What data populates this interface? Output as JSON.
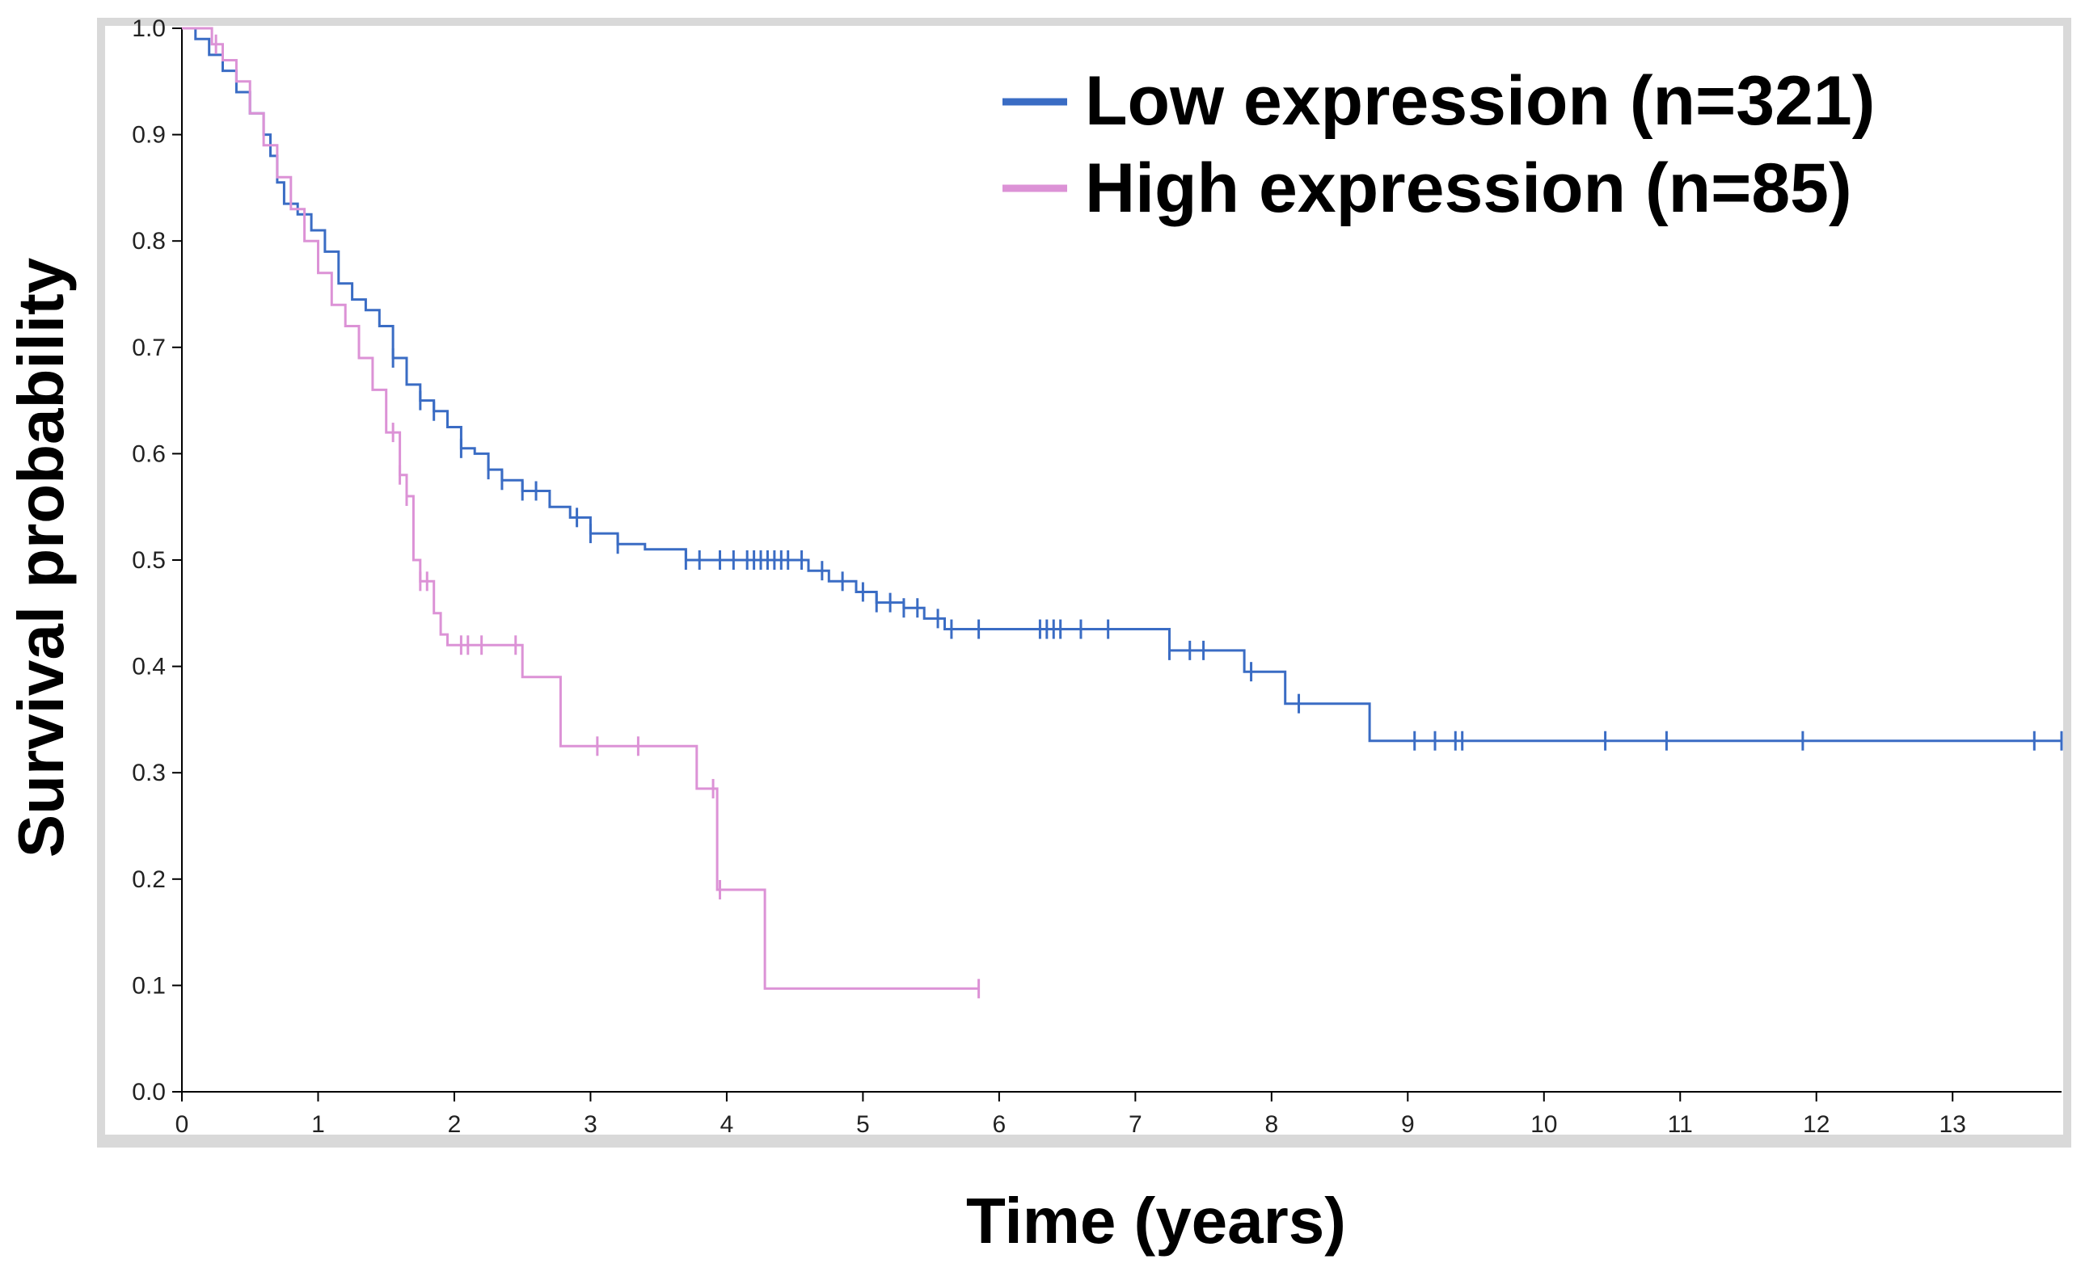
{
  "chart_data": {
    "type": "line",
    "xlabel": "Time (years)",
    "ylabel": "Survival probability",
    "xlim": [
      0,
      13.8
    ],
    "ylim": [
      0,
      1
    ],
    "x_ticks": [
      0,
      1,
      2,
      3,
      4,
      5,
      6,
      7,
      8,
      9,
      10,
      11,
      12,
      13
    ],
    "y_ticks": [
      "0.0",
      "0.1",
      "0.2",
      "0.3",
      "0.4",
      "0.5",
      "0.6",
      "0.7",
      "0.8",
      "0.9",
      "1.0"
    ],
    "grid": false,
    "legend_position": "top-right",
    "series": [
      {
        "name": "Low expression (n=321)",
        "color": "#3a6cc4",
        "points": [
          [
            0,
            1.0
          ],
          [
            0.1,
            0.99
          ],
          [
            0.2,
            0.975
          ],
          [
            0.3,
            0.96
          ],
          [
            0.4,
            0.94
          ],
          [
            0.5,
            0.92
          ],
          [
            0.6,
            0.9
          ],
          [
            0.65,
            0.88
          ],
          [
            0.7,
            0.855
          ],
          [
            0.75,
            0.835
          ],
          [
            0.85,
            0.825
          ],
          [
            0.95,
            0.81
          ],
          [
            1.05,
            0.79
          ],
          [
            1.15,
            0.76
          ],
          [
            1.25,
            0.745
          ],
          [
            1.35,
            0.735
          ],
          [
            1.45,
            0.72
          ],
          [
            1.55,
            0.69
          ],
          [
            1.65,
            0.665
          ],
          [
            1.75,
            0.65
          ],
          [
            1.85,
            0.64
          ],
          [
            1.95,
            0.625
          ],
          [
            2.05,
            0.605
          ],
          [
            2.15,
            0.6
          ],
          [
            2.25,
            0.585
          ],
          [
            2.35,
            0.575
          ],
          [
            2.5,
            0.565
          ],
          [
            2.7,
            0.55
          ],
          [
            2.85,
            0.54
          ],
          [
            3.0,
            0.525
          ],
          [
            3.2,
            0.515
          ],
          [
            3.4,
            0.51
          ],
          [
            3.7,
            0.5
          ],
          [
            4.5,
            0.5
          ],
          [
            4.6,
            0.49
          ],
          [
            4.75,
            0.48
          ],
          [
            4.95,
            0.47
          ],
          [
            5.1,
            0.46
          ],
          [
            5.3,
            0.455
          ],
          [
            5.45,
            0.445
          ],
          [
            5.6,
            0.435
          ],
          [
            7.2,
            0.435
          ],
          [
            7.25,
            0.415
          ],
          [
            7.75,
            0.415
          ],
          [
            7.8,
            0.395
          ],
          [
            8.05,
            0.395
          ],
          [
            8.1,
            0.365
          ],
          [
            8.25,
            0.365
          ],
          [
            8.7,
            0.365
          ],
          [
            8.72,
            0.33
          ],
          [
            13.8,
            0.33
          ]
        ],
        "censor_x": [
          1.55,
          1.75,
          1.85,
          2.05,
          2.25,
          2.35,
          2.5,
          2.6,
          2.9,
          3.0,
          3.2,
          3.7,
          3.8,
          3.95,
          4.05,
          4.15,
          4.2,
          4.25,
          4.3,
          4.35,
          4.4,
          4.45,
          4.55,
          4.7,
          4.85,
          5.0,
          5.1,
          5.2,
          5.3,
          5.4,
          5.55,
          5.65,
          5.85,
          6.3,
          6.35,
          6.4,
          6.45,
          6.6,
          6.8,
          7.25,
          7.4,
          7.5,
          7.85,
          8.2,
          9.05,
          9.2,
          9.35,
          9.4,
          10.45,
          10.9,
          11.9,
          13.6,
          13.8
        ]
      },
      {
        "name": "High expression (n=85)",
        "color": "#dc92d6",
        "points": [
          [
            0,
            1.0
          ],
          [
            0.18,
            1.0
          ],
          [
            0.22,
            0.985
          ],
          [
            0.3,
            0.97
          ],
          [
            0.4,
            0.95
          ],
          [
            0.5,
            0.92
          ],
          [
            0.6,
            0.89
          ],
          [
            0.7,
            0.86
          ],
          [
            0.8,
            0.83
          ],
          [
            0.9,
            0.8
          ],
          [
            1.0,
            0.77
          ],
          [
            1.1,
            0.74
          ],
          [
            1.2,
            0.72
          ],
          [
            1.3,
            0.69
          ],
          [
            1.4,
            0.66
          ],
          [
            1.5,
            0.62
          ],
          [
            1.6,
            0.58
          ],
          [
            1.65,
            0.56
          ],
          [
            1.7,
            0.5
          ],
          [
            1.75,
            0.48
          ],
          [
            1.85,
            0.45
          ],
          [
            1.9,
            0.43
          ],
          [
            1.95,
            0.42
          ],
          [
            2.45,
            0.42
          ],
          [
            2.5,
            0.39
          ],
          [
            2.75,
            0.39
          ],
          [
            2.78,
            0.325
          ],
          [
            3.75,
            0.325
          ],
          [
            3.78,
            0.285
          ],
          [
            3.9,
            0.285
          ],
          [
            3.93,
            0.19
          ],
          [
            4.25,
            0.19
          ],
          [
            4.28,
            0.097
          ],
          [
            5.85,
            0.097
          ]
        ],
        "censor_x": [
          0.25,
          1.55,
          1.6,
          1.65,
          1.75,
          1.8,
          2.05,
          2.1,
          2.2,
          2.45,
          3.05,
          3.35,
          3.9,
          3.95,
          5.85
        ]
      }
    ]
  }
}
